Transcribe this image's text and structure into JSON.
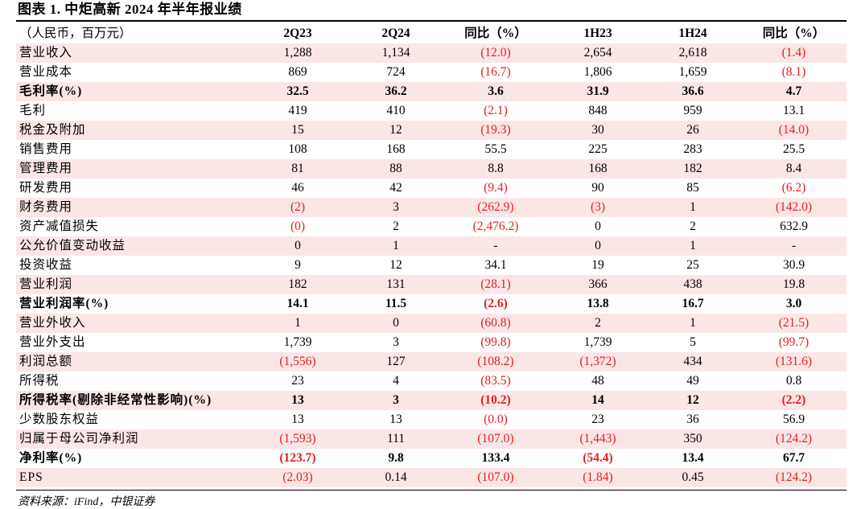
{
  "title": "图表 1. 中炬高新 2024 年半年报业绩",
  "header": [
    "（人民币，百万元）",
    "2Q23",
    "2Q24",
    "同比（%）",
    "1H23",
    "1H24",
    "同比（%）"
  ],
  "rows": [
    {
      "label": "营业收入",
      "cells": [
        "1,288",
        "1,134",
        "(12.0)",
        "2,654",
        "2,618",
        "(1.4)"
      ],
      "bold": false
    },
    {
      "label": "营业成本",
      "cells": [
        "869",
        "724",
        "(16.7)",
        "1,806",
        "1,659",
        "(8.1)"
      ],
      "bold": false
    },
    {
      "label": "毛利率(%)",
      "cells": [
        "32.5",
        "36.2",
        "3.6",
        "31.9",
        "36.6",
        "4.7"
      ],
      "bold": true
    },
    {
      "label": "毛利",
      "cells": [
        "419",
        "410",
        "(2.1)",
        "848",
        "959",
        "13.1"
      ],
      "bold": false
    },
    {
      "label": "税金及附加",
      "cells": [
        "15",
        "12",
        "(19.3)",
        "30",
        "26",
        "(14.0)"
      ],
      "bold": false
    },
    {
      "label": "销售费用",
      "cells": [
        "108",
        "168",
        "55.5",
        "225",
        "283",
        "25.5"
      ],
      "bold": false
    },
    {
      "label": "管理费用",
      "cells": [
        "81",
        "88",
        "8.8",
        "168",
        "182",
        "8.4"
      ],
      "bold": false
    },
    {
      "label": "研发费用",
      "cells": [
        "46",
        "42",
        "(9.4)",
        "90",
        "85",
        "(6.2)"
      ],
      "bold": false
    },
    {
      "label": "财务费用",
      "cells": [
        "(2)",
        "3",
        "(262.9)",
        "(3)",
        "1",
        "(142.0)"
      ],
      "bold": false
    },
    {
      "label": "资产减值损失",
      "cells": [
        "(0)",
        "2",
        "(2,476.2)",
        "0",
        "2",
        "632.9"
      ],
      "bold": false
    },
    {
      "label": "公允价值变动收益",
      "cells": [
        "0",
        "1",
        "-",
        "0",
        "1",
        "-"
      ],
      "bold": false
    },
    {
      "label": "投资收益",
      "cells": [
        "9",
        "12",
        "34.1",
        "19",
        "25",
        "30.9"
      ],
      "bold": false
    },
    {
      "label": "营业利润",
      "cells": [
        "182",
        "131",
        "(28.1)",
        "366",
        "438",
        "19.8"
      ],
      "bold": false
    },
    {
      "label": "营业利润率(%)",
      "cells": [
        "14.1",
        "11.5",
        "(2.6)",
        "13.8",
        "16.7",
        "3.0"
      ],
      "bold": true
    },
    {
      "label": "营业外收入",
      "cells": [
        "1",
        "0",
        "(60.8)",
        "2",
        "1",
        "(21.5)"
      ],
      "bold": false
    },
    {
      "label": "营业外支出",
      "cells": [
        "1,739",
        "3",
        "(99.8)",
        "1,739",
        "5",
        "(99.7)"
      ],
      "bold": false
    },
    {
      "label": "利润总额",
      "cells": [
        "(1,556)",
        "127",
        "(108.2)",
        "(1,372)",
        "434",
        "(131.6)"
      ],
      "bold": false
    },
    {
      "label": "所得税",
      "cells": [
        "23",
        "4",
        "(83.5)",
        "48",
        "49",
        "0.8"
      ],
      "bold": false
    },
    {
      "label": "所得税率(剔除非经常性影响)(%)",
      "cells": [
        "13",
        "3",
        "(10.2)",
        "14",
        "12",
        "(2.2)"
      ],
      "bold": true
    },
    {
      "label": "少数股东权益",
      "cells": [
        "13",
        "13",
        "(0.0)",
        "23",
        "36",
        "56.9"
      ],
      "bold": false
    },
    {
      "label": "归属于母公司净利润",
      "cells": [
        "(1,593)",
        "111",
        "(107.0)",
        "(1,443)",
        "350",
        "(124.2)"
      ],
      "bold": false
    },
    {
      "label": "净利率(%)",
      "cells": [
        "(123.7)",
        "9.8",
        "133.4",
        "(54.4)",
        "13.4",
        "67.7"
      ],
      "bold": true
    },
    {
      "label": "EPS",
      "cells": [
        "(2.03)",
        "0.14",
        "(107.0)",
        "(1.84)",
        "0.45",
        "(124.2)"
      ],
      "bold": false
    }
  ],
  "source": "资料来源：iFind，中银证券",
  "colors": {
    "negative": "#e41e1e",
    "shade": "#fbe6e6"
  }
}
